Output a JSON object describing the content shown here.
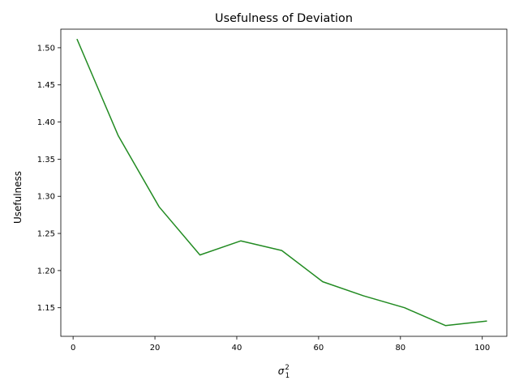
{
  "chart_data": {
    "type": "line",
    "title": "Usefulness of Deviation",
    "xlabel": {
      "base": "σ",
      "superscript": "2",
      "subscript": "1"
    },
    "ylabel": "Usefulness",
    "xlim": [
      -3,
      106
    ],
    "ylim": [
      1.1115,
      1.525
    ],
    "xticks": [
      0,
      20,
      40,
      60,
      80,
      100
    ],
    "xtick_labels": [
      "0",
      "20",
      "40",
      "60",
      "80",
      "100"
    ],
    "yticks": [
      1.15,
      1.2,
      1.25,
      1.3,
      1.35,
      1.4,
      1.45,
      1.5
    ],
    "ytick_labels": [
      "1.15",
      "1.20",
      "1.25",
      "1.30",
      "1.35",
      "1.40",
      "1.45",
      "1.50"
    ],
    "grid": false,
    "series": [
      {
        "color": "#228b22",
        "x": [
          1,
          11,
          21,
          31,
          41,
          51,
          61,
          71,
          81,
          91,
          101
        ],
        "y": [
          1.511,
          1.382,
          1.286,
          1.221,
          1.24,
          1.227,
          1.185,
          1.166,
          1.15,
          1.126,
          1.132
        ]
      }
    ]
  }
}
